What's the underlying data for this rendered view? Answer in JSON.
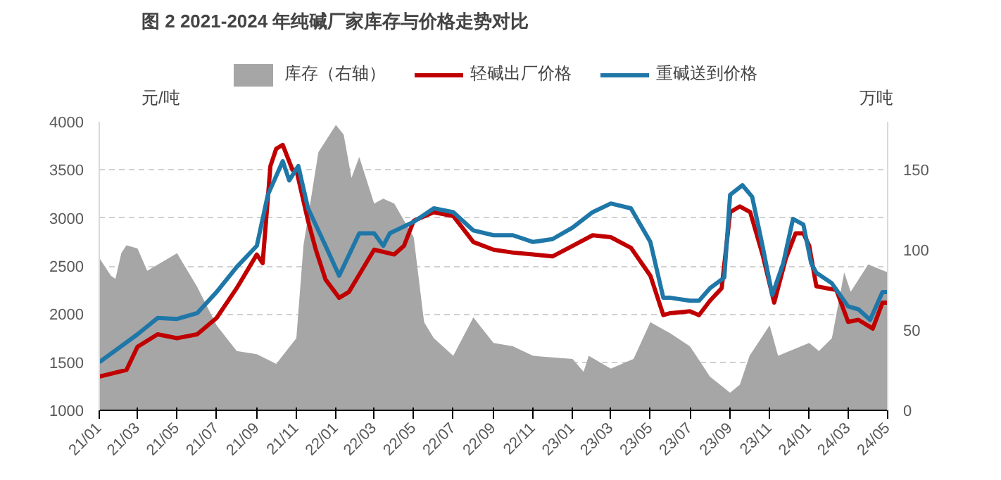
{
  "chart_data": {
    "type": "line",
    "title": "图 2 2021-2024 年纯碱厂家库存与价格走势对比",
    "ylabel": "元/吨",
    "y2label": "万吨",
    "series": [
      {
        "name": "库存（右轴）",
        "type": "area",
        "axis": "y2",
        "color": "#a6a6a6",
        "x": [
          "2021-01-01",
          "2021-01-19",
          "2021-01-26",
          "2021-02-04",
          "2021-02-12",
          "2021-03-01",
          "2021-03-16",
          "2021-05-01",
          "2021-06-01",
          "2021-07-01",
          "2021-08-01",
          "2021-09-01",
          "2021-10-01",
          "2021-11-01",
          "2021-11-12",
          "2021-12-05",
          "2022-01-01",
          "2022-01-13",
          "2022-01-25",
          "2022-02-06",
          "2022-03-01",
          "2022-03-15",
          "2022-04-01",
          "2022-05-01",
          "2022-05-17",
          "2022-06-01",
          "2022-07-01",
          "2022-08-01",
          "2022-09-01",
          "2022-10-01",
          "2022-11-01",
          "2023-01-01",
          "2023-01-18",
          "2023-01-26",
          "2023-03-01",
          "2023-04-05",
          "2023-05-01",
          "2023-06-01",
          "2023-07-01",
          "2023-08-01",
          "2023-09-01",
          "2023-09-16",
          "2023-10-01",
          "2023-11-01",
          "2023-11-14",
          "2024-01-01",
          "2024-01-16",
          "2024-02-05",
          "2024-02-24",
          "2024-03-05",
          "2024-04-01",
          "2024-05-01"
        ],
        "values": [
          95,
          84,
          82,
          98,
          103,
          101,
          87,
          98,
          77,
          53,
          37,
          35,
          29,
          45,
          103,
          161,
          178,
          172,
          145,
          158,
          129,
          132,
          129,
          108,
          55,
          45,
          34,
          58,
          42,
          40,
          34,
          32,
          24,
          34,
          26,
          32,
          55,
          48,
          40,
          21,
          11,
          16,
          34,
          53,
          34,
          42,
          37,
          45,
          86,
          74,
          91,
          86
        ]
      },
      {
        "name": "轻碱出厂价格",
        "color": "#c00000",
        "x": [
          "2021-01-01",
          "2021-02-12",
          "2021-03-01",
          "2021-04-01",
          "2021-05-01",
          "2021-06-01",
          "2021-07-01",
          "2021-08-01",
          "2021-09-01",
          "2021-09-10",
          "2021-09-22",
          "2021-10-01",
          "2021-10-11",
          "2021-10-26",
          "2021-11-01",
          "2021-11-19",
          "2021-12-01",
          "2021-12-16",
          "2022-01-06",
          "2022-01-21",
          "2022-03-01",
          "2022-04-01",
          "2022-04-16",
          "2022-05-01",
          "2022-06-01",
          "2022-07-01",
          "2022-08-01",
          "2022-09-01",
          "2022-10-01",
          "2022-11-01",
          "2022-12-01",
          "2023-01-01",
          "2023-02-01",
          "2023-03-01",
          "2023-04-01",
          "2023-05-01",
          "2023-05-21",
          "2023-06-01",
          "2023-07-01",
          "2023-07-15",
          "2023-08-01",
          "2023-08-19",
          "2023-09-01",
          "2023-09-16",
          "2023-10-02",
          "2023-10-21",
          "2023-11-08",
          "2023-11-26",
          "2023-12-11",
          "2023-12-23",
          "2024-01-01",
          "2024-01-12",
          "2024-02-12",
          "2024-03-01",
          "2024-03-17",
          "2024-04-08",
          "2024-04-23",
          "2024-05-01"
        ],
        "values": [
          1350,
          1420,
          1660,
          1790,
          1750,
          1790,
          1960,
          2270,
          2620,
          2530,
          3540,
          3720,
          3760,
          3500,
          3500,
          2970,
          2670,
          2360,
          2170,
          2230,
          2670,
          2620,
          2710,
          2970,
          3060,
          3020,
          2750,
          2670,
          2640,
          2620,
          2600,
          2710,
          2820,
          2800,
          2690,
          2400,
          1990,
          2010,
          2030,
          1990,
          2140,
          2270,
          3060,
          3120,
          3060,
          2620,
          2120,
          2580,
          2840,
          2840,
          2710,
          2290,
          2250,
          1920,
          1940,
          1850,
          2120,
          2120
        ]
      },
      {
        "name": "重碱送到价格",
        "color": "#1f77a8",
        "x": [
          "2021-01-01",
          "2021-03-01",
          "2021-04-01",
          "2021-05-01",
          "2021-06-01",
          "2021-07-01",
          "2021-08-01",
          "2021-09-01",
          "2021-09-18",
          "2021-10-11",
          "2021-10-21",
          "2021-11-04",
          "2021-11-19",
          "2021-12-16",
          "2022-01-06",
          "2022-02-06",
          "2022-03-01",
          "2022-03-15",
          "2022-03-25",
          "2022-05-01",
          "2022-06-01",
          "2022-07-01",
          "2022-08-01",
          "2022-09-01",
          "2022-10-01",
          "2022-11-01",
          "2022-12-01",
          "2023-01-01",
          "2023-02-01",
          "2023-03-01",
          "2023-04-01",
          "2023-05-01",
          "2023-05-21",
          "2023-06-01",
          "2023-07-01",
          "2023-07-15",
          "2023-08-01",
          "2023-08-23",
          "2023-09-01",
          "2023-09-20",
          "2023-10-05",
          "2023-10-21",
          "2023-11-05",
          "2023-11-22",
          "2023-12-07",
          "2023-12-23",
          "2024-01-04",
          "2024-01-12",
          "2024-02-05",
          "2024-03-01",
          "2024-03-17",
          "2024-04-04",
          "2024-04-23",
          "2024-05-01"
        ],
        "values": [
          1500,
          1790,
          1960,
          1950,
          2010,
          2230,
          2490,
          2710,
          3240,
          3590,
          3390,
          3540,
          3100,
          2710,
          2400,
          2840,
          2840,
          2710,
          2840,
          2960,
          3100,
          3060,
          2870,
          2820,
          2820,
          2750,
          2780,
          2900,
          3060,
          3150,
          3100,
          2750,
          2170,
          2170,
          2140,
          2140,
          2270,
          2380,
          3240,
          3340,
          3220,
          2710,
          2200,
          2530,
          2990,
          2930,
          2530,
          2430,
          2320,
          2080,
          2050,
          1940,
          2230,
          2230
        ]
      }
    ],
    "xlim": [
      "2021-01-01",
      "2024-05-01"
    ],
    "xticks": [
      {
        "value": "2021-01-01",
        "label": "21/01"
      },
      {
        "value": "2021-03-01",
        "label": "21/03"
      },
      {
        "value": "2021-05-01",
        "label": "21/05"
      },
      {
        "value": "2021-07-01",
        "label": "21/07"
      },
      {
        "value": "2021-09-01",
        "label": "21/09"
      },
      {
        "value": "2021-11-01",
        "label": "21/11"
      },
      {
        "value": "2022-01-01",
        "label": "22/01"
      },
      {
        "value": "2022-03-01",
        "label": "22/03"
      },
      {
        "value": "2022-05-01",
        "label": "22/05"
      },
      {
        "value": "2022-07-01",
        "label": "22/07"
      },
      {
        "value": "2022-09-01",
        "label": "22/09"
      },
      {
        "value": "2022-11-01",
        "label": "22/11"
      },
      {
        "value": "2023-01-01",
        "label": "23/01"
      },
      {
        "value": "2023-03-01",
        "label": "23/03"
      },
      {
        "value": "2023-05-01",
        "label": "23/05"
      },
      {
        "value": "2023-07-01",
        "label": "23/07"
      },
      {
        "value": "2023-09-01",
        "label": "23/09"
      },
      {
        "value": "2023-11-01",
        "label": "23/11"
      },
      {
        "value": "2024-01-01",
        "label": "24/01"
      },
      {
        "value": "2024-03-01",
        "label": "24/03"
      },
      {
        "value": "2024-05-01",
        "label": "24/05"
      }
    ],
    "ylim": [
      1000,
      4000
    ],
    "yticks": [
      1000,
      1500,
      2000,
      2500,
      3000,
      3500,
      4000
    ],
    "y2lim": [
      0,
      180
    ],
    "y2ticks": [
      0,
      50,
      100,
      150
    ],
    "grid": "y",
    "legend": "top",
    "line_style": "solid",
    "marker": "none"
  }
}
